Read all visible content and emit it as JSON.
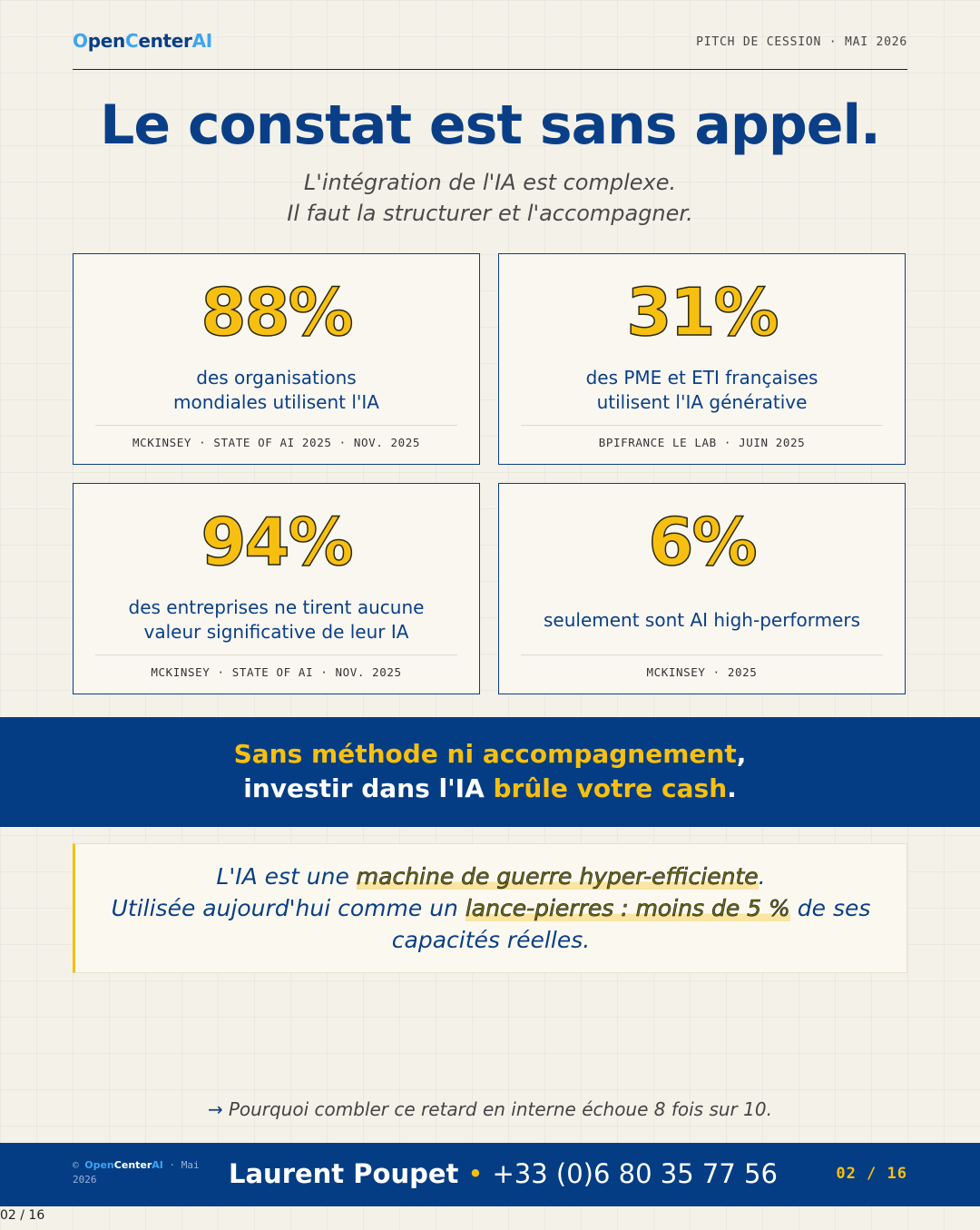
{
  "header": {
    "logo": {
      "o": "O",
      "pen": "pen",
      "c": "C",
      "enter": "enter",
      "ai": "AI"
    },
    "right_text": "PITCH DE CESSION · MAI 2026"
  },
  "title": "Le constat est sans appel.",
  "subtitle": [
    "L'intégration de l'IA est complexe.",
    "Il faut la structurer et l'accompagner."
  ],
  "stats": [
    {
      "value": "88%",
      "desc": [
        "des organisations",
        "mondiales utilisent l'IA"
      ],
      "source": "MCKINSEY · STATE OF AI 2025 · NOV. 2025"
    },
    {
      "value": "31%",
      "desc": [
        "des PME et ETI françaises",
        "utilisent l'IA générative"
      ],
      "source": "BPIFRANCE LE LAB · JUIN 2025"
    },
    {
      "value": "94%",
      "desc": [
        "des entreprises ne tirent aucune",
        "valeur significative de leur IA"
      ],
      "source": "MCKINSEY · STATE OF AI · NOV. 2025"
    },
    {
      "value": "6%",
      "desc": [
        "seulement sont AI high-performers"
      ],
      "source": "MCKINSEY · 2025"
    }
  ],
  "banner": {
    "l1_highlight": "Sans méthode ni accompagnement",
    "l1_end": ",",
    "l2_start": "investir dans l'IA ",
    "l2_highlight": "brûle votre cash",
    "l2_end": "."
  },
  "quote": {
    "l1_a": "L'IA est une ",
    "l1_hl": "machine de guerre hyper-efficiente",
    "l1_b": ".",
    "l2_a": "Utilisée aujourd'hui comme un ",
    "l2_hl": "lance-pierres : moins de 5 %",
    "l2_b": " de ses",
    "l3": "capacités réelles."
  },
  "teaser": "Pourquoi combler ce retard en interne échoue 8 fois sur 10.",
  "footer": {
    "copyright": "©",
    "logo_o": "Open",
    "logo_c": "Center",
    "logo_ai": "AI",
    "date_sep": " · Mai",
    "year": "2026",
    "name": "Laurent Poupet",
    "bullet": "•",
    "phone": "+33 (0)6 80 35 77 56",
    "page": "02 / 16"
  },
  "page_mark": "02 / 16",
  "colors": {
    "navy": "#0a3f87",
    "yellow": "#f7bf10",
    "light_blue": "#3fa4f0",
    "background": "#f4f1e9"
  }
}
